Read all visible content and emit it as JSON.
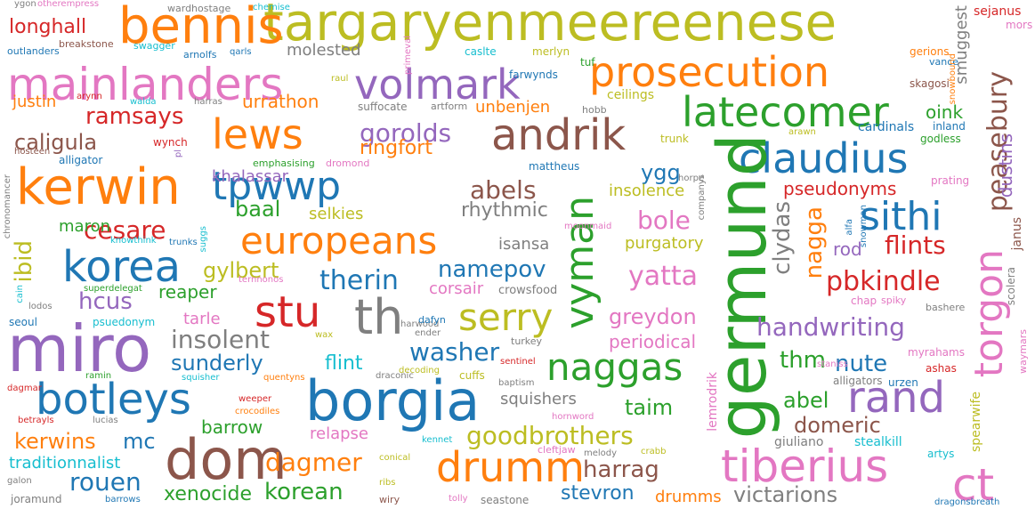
{
  "words": [
    {
      "text": "targaryenmeereenese",
      "color": "#bcbd22"
    },
    {
      "text": "bennis",
      "color": "#ff7f0e"
    },
    {
      "text": "mainlanders",
      "color": "#e377c2"
    },
    {
      "text": "prosecution",
      "color": "#ff7f0e"
    },
    {
      "text": "volmark",
      "color": "#9467bd"
    },
    {
      "text": "latecomer",
      "color": "#2ca02c"
    },
    {
      "text": "kerwin",
      "color": "#ff7f0e"
    },
    {
      "text": "lews",
      "color": "#ff7f0e"
    },
    {
      "text": "andrik",
      "color": "#8c564b"
    },
    {
      "text": "claudius",
      "color": "#1f77b4"
    },
    {
      "text": "tpwwp",
      "color": "#1f77b4"
    },
    {
      "text": "europeans",
      "color": "#ff7f0e"
    },
    {
      "text": "sithi",
      "color": "#1f77b4"
    },
    {
      "text": "korea",
      "color": "#1f77b4"
    },
    {
      "text": "stu",
      "color": "#d62728"
    },
    {
      "text": "th",
      "color": "#7f7f7f"
    },
    {
      "text": "serry",
      "color": "#bcbd22"
    },
    {
      "text": "miro",
      "color": "#9467bd"
    },
    {
      "text": "naggas",
      "color": "#2ca02c"
    },
    {
      "text": "botleys",
      "color": "#1f77b4"
    },
    {
      "text": "borgia",
      "color": "#1f77b4"
    },
    {
      "text": "rand",
      "color": "#9467bd"
    },
    {
      "text": "dom",
      "color": "#8c564b"
    },
    {
      "text": "drumm",
      "color": "#ff7f0e"
    },
    {
      "text": "tiberius",
      "color": "#e377c2"
    },
    {
      "text": "ct",
      "color": "#e377c2"
    },
    {
      "text": "germund",
      "color": "#2ca02c"
    },
    {
      "text": "vyman",
      "color": "#2ca02c"
    },
    {
      "text": "torgon",
      "color": "#e377c2"
    },
    {
      "text": "peasebury",
      "color": "#8c564b"
    },
    {
      "text": "goodbrothers",
      "color": "#bcbd22"
    },
    {
      "text": "handwriting",
      "color": "#9467bd"
    },
    {
      "text": "insolent",
      "color": "#7f7f7f"
    },
    {
      "text": "washer",
      "color": "#1f77b4"
    },
    {
      "text": "therin",
      "color": "#1f77b4"
    },
    {
      "text": "namepov",
      "color": "#1f77b4"
    },
    {
      "text": "cesare",
      "color": "#d62728"
    },
    {
      "text": "gylbert",
      "color": "#bcbd22"
    },
    {
      "text": "pbkindle",
      "color": "#d62728"
    },
    {
      "text": "flints",
      "color": "#d62728"
    },
    {
      "text": "yatta",
      "color": "#e377c2"
    },
    {
      "text": "greydon",
      "color": "#e377c2"
    },
    {
      "text": "periodical",
      "color": "#e377c2"
    },
    {
      "text": "bole",
      "color": "#e377c2"
    },
    {
      "text": "abels",
      "color": "#8c564b"
    },
    {
      "text": "rhythmic",
      "color": "#7f7f7f"
    },
    {
      "text": "gorolds",
      "color": "#9467bd"
    },
    {
      "text": "ringfort",
      "color": "#ff7f0e"
    },
    {
      "text": "ramsays",
      "color": "#d62728"
    },
    {
      "text": "caligula",
      "color": "#8c564b"
    },
    {
      "text": "urrathon",
      "color": "#ff7f0e"
    },
    {
      "text": "unbenjen",
      "color": "#ff7f0e"
    },
    {
      "text": "longhall",
      "color": "#d62728"
    },
    {
      "text": "molested",
      "color": "#7f7f7f"
    },
    {
      "text": "justin",
      "color": "#ff7f0e"
    },
    {
      "text": "khalassar",
      "color": "#9467bd"
    },
    {
      "text": "baal",
      "color": "#2ca02c"
    },
    {
      "text": "selkies",
      "color": "#bcbd22"
    },
    {
      "text": "ygg",
      "color": "#1f77b4"
    },
    {
      "text": "insolence",
      "color": "#bcbd22"
    },
    {
      "text": "pseudonyms",
      "color": "#d62728"
    },
    {
      "text": "purgatory",
      "color": "#bcbd22"
    },
    {
      "text": "isansa",
      "color": "#7f7f7f"
    },
    {
      "text": "clydas",
      "color": "#7f7f7f"
    },
    {
      "text": "nagga",
      "color": "#ff7f0e"
    },
    {
      "text": "rod",
      "color": "#9467bd"
    },
    {
      "text": "dustins",
      "color": "#9467bd"
    },
    {
      "text": "oink",
      "color": "#2ca02c"
    },
    {
      "text": "smuggest",
      "color": "#7f7f7f"
    },
    {
      "text": "cardinals",
      "color": "#1f77b4"
    },
    {
      "text": "inland",
      "color": "#1f77b4"
    },
    {
      "text": "godless",
      "color": "#2ca02c"
    },
    {
      "text": "ibid",
      "color": "#bcbd22"
    },
    {
      "text": "maron",
      "color": "#2ca02c"
    },
    {
      "text": "reaper",
      "color": "#2ca02c"
    },
    {
      "text": "hcus",
      "color": "#9467bd"
    },
    {
      "text": "tarle",
      "color": "#e377c2"
    },
    {
      "text": "sunderly",
      "color": "#1f77b4"
    },
    {
      "text": "flint",
      "color": "#17becf"
    },
    {
      "text": "corsair",
      "color": "#e377c2"
    },
    {
      "text": "crowsfood",
      "color": "#7f7f7f"
    },
    {
      "text": "thm",
      "color": "#2ca02c"
    },
    {
      "text": "nute",
      "color": "#1f77b4"
    },
    {
      "text": "abel",
      "color": "#2ca02c"
    },
    {
      "text": "domeric",
      "color": "#8c564b"
    },
    {
      "text": "taim",
      "color": "#2ca02c"
    },
    {
      "text": "squishers",
      "color": "#7f7f7f"
    },
    {
      "text": "kerwins",
      "color": "#ff7f0e"
    },
    {
      "text": "mc",
      "color": "#1f77b4"
    },
    {
      "text": "traditionnalist",
      "color": "#17becf"
    },
    {
      "text": "rouen",
      "color": "#1f77b4"
    },
    {
      "text": "xenocide",
      "color": "#2ca02c"
    },
    {
      "text": "dagmer",
      "color": "#ff7f0e"
    },
    {
      "text": "korean",
      "color": "#2ca02c"
    },
    {
      "text": "barrow",
      "color": "#2ca02c"
    },
    {
      "text": "relapse",
      "color": "#e377c2"
    },
    {
      "text": "harrag",
      "color": "#8c564b"
    },
    {
      "text": "stevron",
      "color": "#1f77b4"
    },
    {
      "text": "drumms",
      "color": "#ff7f0e"
    },
    {
      "text": "victarions",
      "color": "#7f7f7f"
    },
    {
      "text": "lemrodrik",
      "color": "#e377c2"
    },
    {
      "text": "spearwife",
      "color": "#bcbd22"
    },
    {
      "text": "giuliano",
      "color": "#7f7f7f"
    },
    {
      "text": "stealkill",
      "color": "#17becf"
    },
    {
      "text": "artys",
      "color": "#17becf"
    },
    {
      "text": "myrahams",
      "color": "#e377c2"
    },
    {
      "text": "ashas",
      "color": "#d62728"
    },
    {
      "text": "alligators",
      "color": "#7f7f7f"
    },
    {
      "text": "urzen",
      "color": "#1f77b4"
    },
    {
      "text": "staniss",
      "color": "#e377c2"
    },
    {
      "text": "bashere",
      "color": "#7f7f7f"
    },
    {
      "text": "scolera",
      "color": "#7f7f7f"
    },
    {
      "text": "waymars",
      "color": "#e377c2"
    },
    {
      "text": "spiky",
      "color": "#e377c2"
    },
    {
      "text": "chap",
      "color": "#e377c2"
    },
    {
      "text": "janus",
      "color": "#8c564b"
    },
    {
      "text": "alfa",
      "color": "#1f77b4"
    },
    {
      "text": "snowman",
      "color": "#1f77b4"
    },
    {
      "text": "prating",
      "color": "#e377c2"
    },
    {
      "text": "sejanus",
      "color": "#d62728"
    },
    {
      "text": "mors",
      "color": "#e377c2"
    },
    {
      "text": "gerions",
      "color": "#ff7f0e"
    },
    {
      "text": "vance",
      "color": "#1f77b4"
    },
    {
      "text": "skagosi",
      "color": "#8c564b"
    },
    {
      "text": "snowbound",
      "color": "#ff7f0e"
    },
    {
      "text": "arawn",
      "color": "#bcbd22"
    },
    {
      "text": "horpe",
      "color": "#7f7f7f"
    },
    {
      "text": "companys",
      "color": "#7f7f7f"
    },
    {
      "text": "moonmaid",
      "color": "#e377c2"
    },
    {
      "text": "mattheus",
      "color": "#1f77b4"
    },
    {
      "text": "trunk",
      "color": "#bcbd22"
    },
    {
      "text": "emphasising",
      "color": "#2ca02c"
    },
    {
      "text": "dromond",
      "color": "#e377c2"
    },
    {
      "text": "hobb",
      "color": "#7f7f7f"
    },
    {
      "text": "ceilings",
      "color": "#bcbd22"
    },
    {
      "text": "farwynds",
      "color": "#1f77b4"
    },
    {
      "text": "tuf",
      "color": "#2ca02c"
    },
    {
      "text": "merlyn",
      "color": "#bcbd22"
    },
    {
      "text": "caslte",
      "color": "#17becf"
    },
    {
      "text": "primeval",
      "color": "#e377c2"
    },
    {
      "text": "artform",
      "color": "#7f7f7f"
    },
    {
      "text": "suffocate",
      "color": "#7f7f7f"
    },
    {
      "text": "raul",
      "color": "#bcbd22"
    },
    {
      "text": "harras",
      "color": "#7f7f7f"
    },
    {
      "text": "walda",
      "color": "#17becf"
    },
    {
      "text": "arynn",
      "color": "#d62728"
    },
    {
      "text": "qarls",
      "color": "#1f77b4"
    },
    {
      "text": "arnolfs",
      "color": "#1f77b4"
    },
    {
      "text": "swagger",
      "color": "#17becf"
    },
    {
      "text": "breakstone",
      "color": "#8c564b"
    },
    {
      "text": "outlanders",
      "color": "#1f77b4"
    },
    {
      "text": "ygon",
      "color": "#7f7f7f"
    },
    {
      "text": "otherempress",
      "color": "#e377c2"
    },
    {
      "text": "wardhostage",
      "color": "#7f7f7f"
    },
    {
      "text": "chemise",
      "color": "#17becf"
    },
    {
      "text": "wynch",
      "color": "#d62728"
    },
    {
      "text": "hosteen",
      "color": "#8c564b"
    },
    {
      "text": "alligator",
      "color": "#1f77b4"
    },
    {
      "text": "pl",
      "color": "#9467bd"
    },
    {
      "text": "chronomancer",
      "color": "#7f7f7f"
    },
    {
      "text": "suggs",
      "color": "#17becf"
    },
    {
      "text": "knowthink",
      "color": "#17becf"
    },
    {
      "text": "trunks",
      "color": "#1f77b4"
    },
    {
      "text": "superdelegat",
      "color": "#2ca02c"
    },
    {
      "text": "ternnonos",
      "color": "#e377c2"
    },
    {
      "text": "cain",
      "color": "#17becf"
    },
    {
      "text": "lodos",
      "color": "#7f7f7f"
    },
    {
      "text": "seoul",
      "color": "#1f77b4"
    },
    {
      "text": "psuedonym",
      "color": "#17becf"
    },
    {
      "text": "harwood",
      "color": "#7f7f7f"
    },
    {
      "text": "dafyn",
      "color": "#1f77b4"
    },
    {
      "text": "ender",
      "color": "#7f7f7f"
    },
    {
      "text": "wax",
      "color": "#bcbd22"
    },
    {
      "text": "turkey",
      "color": "#7f7f7f"
    },
    {
      "text": "sentinel",
      "color": "#d62728"
    },
    {
      "text": "draconic",
      "color": "#7f7f7f"
    },
    {
      "text": "decoding",
      "color": "#bcbd22"
    },
    {
      "text": "baptism",
      "color": "#7f7f7f"
    },
    {
      "text": "cuffs",
      "color": "#bcbd22"
    },
    {
      "text": "quentyns",
      "color": "#ff7f0e"
    },
    {
      "text": "squisher",
      "color": "#17becf"
    },
    {
      "text": "weeper",
      "color": "#d62728"
    },
    {
      "text": "ramin",
      "color": "#2ca02c"
    },
    {
      "text": "dagmar",
      "color": "#d62728"
    },
    {
      "text": "crocodiles",
      "color": "#ff7f0e"
    },
    {
      "text": "betrayls",
      "color": "#d62728"
    },
    {
      "text": "lucias",
      "color": "#7f7f7f"
    },
    {
      "text": "hornword",
      "color": "#e377c2"
    },
    {
      "text": "kennet",
      "color": "#17becf"
    },
    {
      "text": "cleftjaw",
      "color": "#e377c2"
    },
    {
      "text": "melody",
      "color": "#7f7f7f"
    },
    {
      "text": "crabb",
      "color": "#bcbd22"
    },
    {
      "text": "conical",
      "color": "#bcbd22"
    },
    {
      "text": "galon",
      "color": "#7f7f7f"
    },
    {
      "text": "joramund",
      "color": "#7f7f7f"
    },
    {
      "text": "barrows",
      "color": "#1f77b4"
    },
    {
      "text": "ribs",
      "color": "#bcbd22"
    },
    {
      "text": "wiry",
      "color": "#8c564b"
    },
    {
      "text": "tolly",
      "color": "#e377c2"
    },
    {
      "text": "seastone",
      "color": "#7f7f7f"
    },
    {
      "text": "dragonsbreath",
      "color": "#1f77b4"
    }
  ]
}
